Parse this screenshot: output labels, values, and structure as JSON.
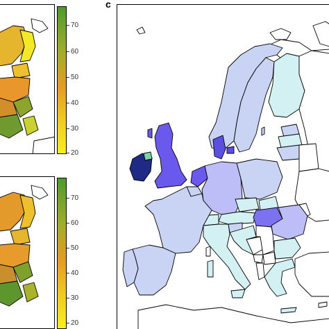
{
  "panel_c": {
    "label": "c"
  },
  "colorbar_top": {
    "ticks": [
      "70",
      "60",
      "50",
      "40",
      "30",
      "20"
    ]
  },
  "colorbar_bottom": {
    "ticks": [
      "70",
      "60",
      "50",
      "40",
      "30",
      "20"
    ]
  }
}
